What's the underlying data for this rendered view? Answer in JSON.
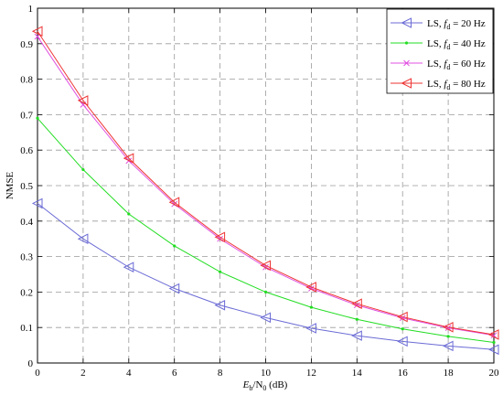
{
  "chart_data": {
    "type": "line",
    "title": "",
    "xlabel": {
      "main": "E",
      "sub1": "b",
      "slash": "/N",
      "sub2": "0",
      "unit": " (dB)"
    },
    "ylabel": "NMSE",
    "xlim": [
      0,
      20
    ],
    "ylim": [
      0,
      1
    ],
    "xticks": [
      "0",
      "2",
      "4",
      "6",
      "8",
      "10",
      "12",
      "14",
      "16",
      "18",
      "20"
    ],
    "yticks": [
      "0",
      "0.1",
      "0.2",
      "0.3",
      "0.4",
      "0.5",
      "0.6",
      "0.7",
      "0.8",
      "0.9",
      "1"
    ],
    "grid": true,
    "legend_position": "top-right",
    "x": [
      0,
      2,
      4,
      6,
      8,
      10,
      12,
      14,
      16,
      18,
      20
    ],
    "series": [
      {
        "legend_prefix": "LS, ",
        "legend_f": "f",
        "legend_sub": "d",
        "legend_suffix": " = 20 Hz",
        "color": "#6b6bd6",
        "marker": "triangle-left",
        "values": [
          0.45,
          0.35,
          0.27,
          0.21,
          0.163,
          0.128,
          0.098,
          0.077,
          0.061,
          0.048,
          0.038
        ]
      },
      {
        "legend_prefix": "LS, ",
        "legend_f": "f",
        "legend_sub": "d",
        "legend_suffix": " = 40 Hz",
        "color": "#22dd22",
        "marker": "dot",
        "values": [
          0.69,
          0.545,
          0.42,
          0.33,
          0.257,
          0.2,
          0.157,
          0.123,
          0.096,
          0.075,
          0.058
        ]
      },
      {
        "legend_prefix": "LS, ",
        "legend_f": "f",
        "legend_sub": "d",
        "legend_suffix": " = 60 Hz",
        "color": "#e050e0",
        "marker": "x",
        "values": [
          0.92,
          0.728,
          0.57,
          0.448,
          0.35,
          0.27,
          0.21,
          0.163,
          0.127,
          0.099,
          0.078
        ]
      },
      {
        "legend_prefix": "LS, ",
        "legend_f": "f",
        "legend_sub": "d",
        "legend_suffix": " = 80 Hz",
        "color": "#ee3333",
        "marker": "triangle-left",
        "values": [
          0.935,
          0.74,
          0.577,
          0.453,
          0.355,
          0.275,
          0.214,
          0.167,
          0.13,
          0.101,
          0.08
        ]
      }
    ]
  }
}
